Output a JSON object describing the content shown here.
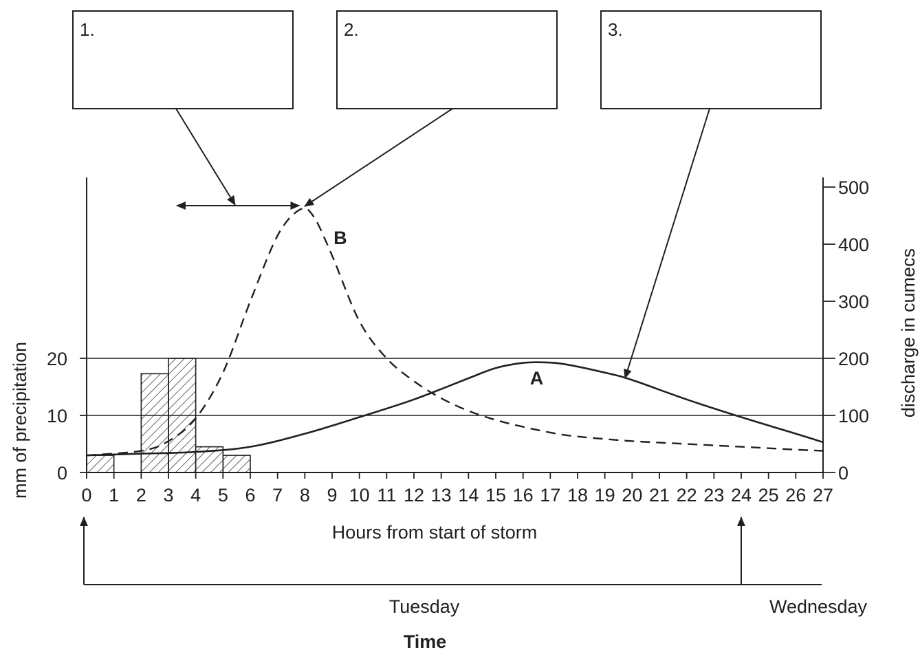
{
  "annotation_boxes": [
    {
      "label": "1."
    },
    {
      "label": "2."
    },
    {
      "label": "3."
    }
  ],
  "chart_data": {
    "type": "bar",
    "title": "",
    "xlabel": "Hours from start of storm",
    "ylabel": "mm of precipitation",
    "y2label": "discharge in cumecs",
    "xlim": [
      0,
      27
    ],
    "ylim": [
      0,
      25
    ],
    "y2lim": [
      0,
      500
    ],
    "x_ticks": [
      "0",
      "1",
      "2",
      "3",
      "4",
      "5",
      "6",
      "7",
      "8",
      "9",
      "10",
      "11",
      "12",
      "13",
      "14",
      "15",
      "16",
      "17",
      "18",
      "19",
      "20",
      "21",
      "22",
      "23",
      "24",
      "25",
      "26",
      "27"
    ],
    "y_ticks": [
      "0",
      "10",
      "20"
    ],
    "y2_ticks": [
      "0",
      "100",
      "200",
      "300",
      "400",
      "500"
    ],
    "grid": "horizontal lines at 10 and 20 mm",
    "precipitation_bars": [
      {
        "start": 0,
        "end": 1,
        "value": 3
      },
      {
        "start": 2,
        "end": 3,
        "value": 17.3
      },
      {
        "start": 3,
        "end": 4,
        "value": 20
      },
      {
        "start": 4,
        "end": 5,
        "value": 4.5
      },
      {
        "start": 5,
        "end": 6,
        "value": 3
      }
    ],
    "series": [
      {
        "name": "A",
        "style": "solid",
        "x": [
          0,
          2,
          4,
          6,
          8,
          10,
          12,
          14,
          15,
          16,
          16.7,
          17.5,
          19,
          20,
          22,
          24,
          26,
          27
        ],
        "y": [
          30,
          33,
          36,
          45,
          68,
          97,
          128,
          165,
          183,
          192,
          193,
          190,
          175,
          162,
          128,
          97,
          68,
          53
        ]
      },
      {
        "name": "B",
        "style": "dashed",
        "x": [
          0,
          2,
          3,
          4,
          5,
          6,
          7,
          7.8,
          8.3,
          9,
          10,
          11,
          12,
          13,
          14,
          15,
          16,
          17,
          18,
          20,
          22,
          24,
          26,
          27
        ],
        "y": [
          30,
          38,
          55,
          95,
          175,
          300,
          415,
          460,
          450,
          380,
          265,
          200,
          160,
          130,
          108,
          92,
          80,
          70,
          63,
          55,
          50,
          45,
          40,
          38
        ]
      }
    ],
    "timeline": {
      "axis_title": "Time",
      "days": [
        "Tuesday",
        "Wednesday"
      ],
      "markers_at_hours": [
        0,
        24
      ]
    },
    "lag_arrow_hours": [
      3.3,
      7.8
    ]
  }
}
